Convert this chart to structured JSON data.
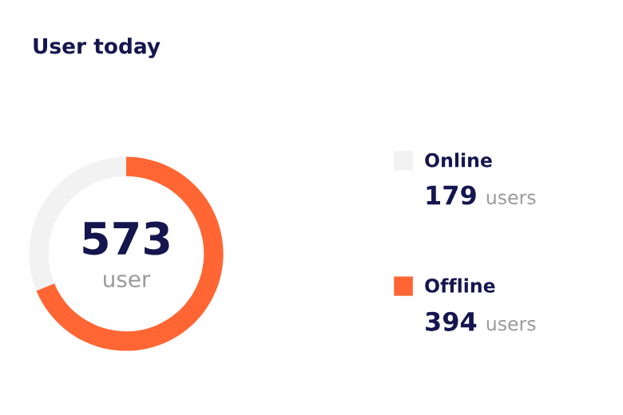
{
  "chart_data": {
    "type": "donut",
    "title": "User today",
    "categories": [
      "Online",
      "Offline"
    ],
    "values": [
      179,
      394
    ],
    "colors": [
      "#f2f2f2",
      "#ff6633"
    ],
    "value_labels": [
      "179 users",
      "394 users"
    ],
    "annotations": [
      "573",
      "user"
    ],
    "legend": "right"
  }
}
